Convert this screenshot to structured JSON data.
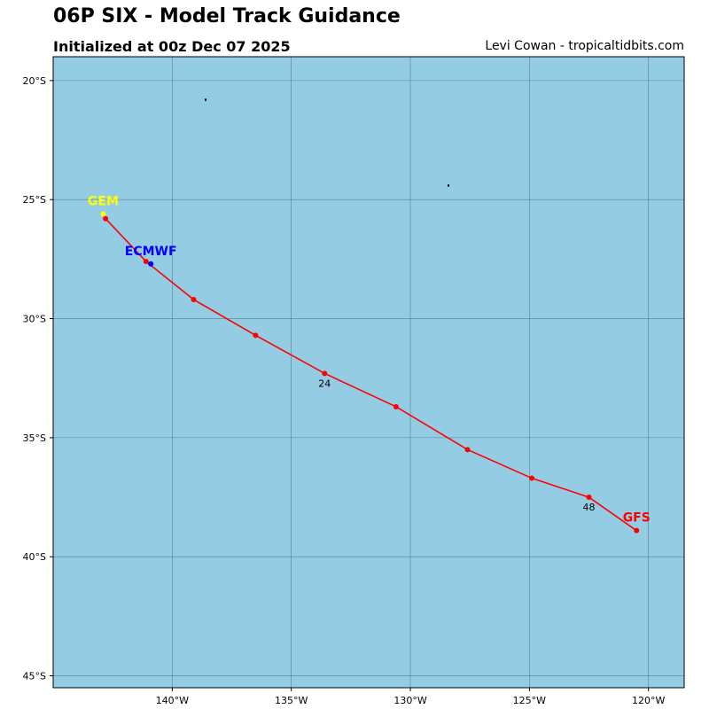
{
  "header": {
    "title": "06P SIX - Model Track Guidance",
    "subtitle": "Initialized at 00z Dec 07 2025",
    "credit": "Levi Cowan - tropicaltidbits.com"
  },
  "colors": {
    "ocean": "#94cde3",
    "grid": "#4a6a7a",
    "gfs": "#ff0000",
    "ecmwf": "#0000ff",
    "gem": "#ffff00"
  },
  "chart_data": {
    "type": "map-track",
    "lon_ticks": [
      {
        "value": -140,
        "label": "140°W"
      },
      {
        "value": -135,
        "label": "135°W"
      },
      {
        "value": -130,
        "label": "130°W"
      },
      {
        "value": -125,
        "label": "125°W"
      },
      {
        "value": -120,
        "label": "120°W"
      }
    ],
    "lat_ticks": [
      {
        "value": -20,
        "label": "20°S"
      },
      {
        "value": -25,
        "label": "25°S"
      },
      {
        "value": -30,
        "label": "30°S"
      },
      {
        "value": -35,
        "label": "35°S"
      },
      {
        "value": -40,
        "label": "40°S"
      },
      {
        "value": -45,
        "label": "45°S"
      }
    ],
    "lon_range": [
      -145,
      -118.5
    ],
    "lat_range": [
      -45.5,
      -19
    ],
    "grid": true,
    "islands": [
      {
        "lon": -138.6,
        "lat": -20.8
      },
      {
        "lon": -128.4,
        "lat": -24.4
      }
    ],
    "tracks": [
      {
        "name": "GFS",
        "color": "#ff0000",
        "points": [
          {
            "lon": -142.8,
            "lat": -25.8
          },
          {
            "lon": -141.1,
            "lat": -27.6
          },
          {
            "lon": -139.1,
            "lat": -29.2
          },
          {
            "lon": -136.5,
            "lat": -30.7
          },
          {
            "lon": -133.6,
            "lat": -32.3
          },
          {
            "lon": -130.6,
            "lat": -33.7
          },
          {
            "lon": -127.6,
            "lat": -35.5
          },
          {
            "lon": -124.9,
            "lat": -36.7
          },
          {
            "lon": -122.5,
            "lat": -37.5
          },
          {
            "lon": -120.5,
            "lat": -38.9
          }
        ],
        "hour_labels": [
          {
            "index": 4,
            "text": "24"
          },
          {
            "index": 8,
            "text": "48"
          }
        ],
        "label_at": "end"
      },
      {
        "name": "ECMWF",
        "color": "#0000ff",
        "points": [
          {
            "lon": -140.9,
            "lat": -27.7
          }
        ],
        "hour_labels": [],
        "label_at": "start"
      },
      {
        "name": "GEM",
        "color": "#ffff00",
        "points": [
          {
            "lon": -142.9,
            "lat": -25.6
          }
        ],
        "hour_labels": [],
        "label_at": "start"
      }
    ]
  }
}
